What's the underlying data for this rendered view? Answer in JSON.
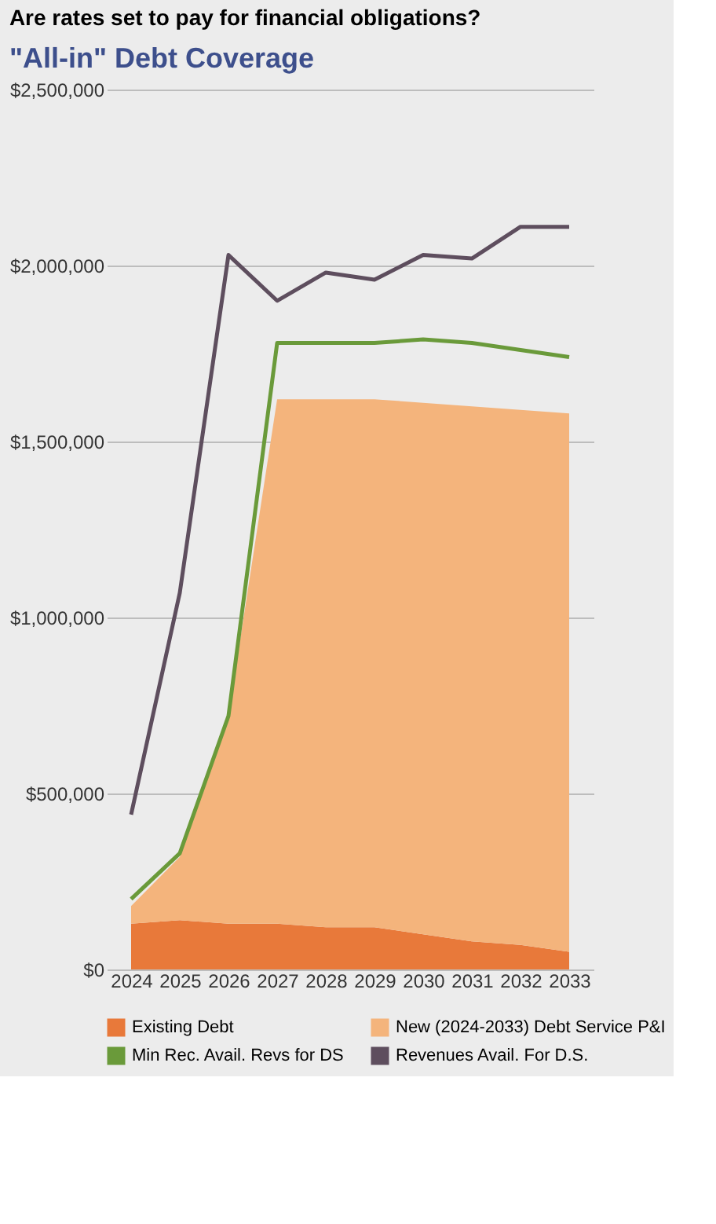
{
  "chart_data": {
    "type": "area",
    "title": "Are rates set to pay for financial obligations?",
    "subtitle": "\"All-in\" Debt Coverage",
    "categories": [
      "2024",
      "2025",
      "2026",
      "2027",
      "2028",
      "2029",
      "2030",
      "2031",
      "2032",
      "2033"
    ],
    "stacked": true,
    "series": [
      {
        "name": "Existing Debt",
        "color": "#e8793a",
        "values": [
          130000,
          140000,
          130000,
          130000,
          120000,
          120000,
          100000,
          80000,
          70000,
          50000
        ]
      },
      {
        "name": "New (2024-2033) Debt Service P&I",
        "color": "#f4b47c",
        "values": [
          50000,
          180000,
          590000,
          1490000,
          1500000,
          1500000,
          1510000,
          1520000,
          1520000,
          1530000
        ]
      },
      {
        "name": "Min Rec. Avail. Revs for DS",
        "type": "line",
        "color": "#6a9a3a",
        "values": [
          200000,
          330000,
          720000,
          1780000,
          1780000,
          1780000,
          1790000,
          1780000,
          1760000,
          1740000
        ]
      },
      {
        "name": "Revenues Avail. For D.S.",
        "type": "line",
        "color": "#5e4e5e",
        "values": [
          440000,
          1070000,
          2030000,
          1900000,
          1980000,
          1960000,
          2030000,
          2020000,
          2110000,
          2110000
        ]
      }
    ],
    "ylim": [
      0,
      2500000
    ],
    "yticks": [
      {
        "value": 0,
        "label": "$0"
      },
      {
        "value": 500000,
        "label": "$500,000"
      },
      {
        "value": 1000000,
        "label": "$1,000,000"
      },
      {
        "value": 1500000,
        "label": "$1,500,000"
      },
      {
        "value": 2000000,
        "label": "$2,000,000"
      },
      {
        "value": 2500000,
        "label": "$2,500,000"
      }
    ],
    "grid": "y",
    "legend": "bottom"
  }
}
